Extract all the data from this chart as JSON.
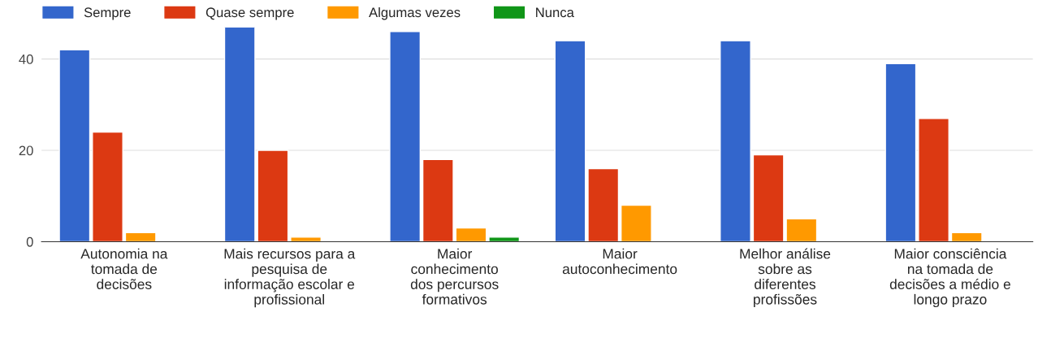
{
  "chart_data": {
    "type": "bar",
    "categories": [
      "Autonomia na\ntomada de\ndecisões",
      "Mais recursos para a\npesquisa de\ninformação escolar e\nprofissional",
      "Maior\nconhecimento\ndos percursos\nformativos",
      "Maior\nautoconhecimento",
      "Melhor análise\nsobre as\ndiferentes\nprofissões",
      "Maior consciência\nna tomada de\ndecisões a médio e\nlongo prazo"
    ],
    "series": [
      {
        "name": "Sempre",
        "color": "#3366cc",
        "values": [
          42,
          47,
          46,
          44,
          44,
          39
        ]
      },
      {
        "name": "Quase sempre",
        "color": "#dc3912",
        "values": [
          24,
          20,
          18,
          16,
          19,
          27
        ]
      },
      {
        "name": "Algumas vezes",
        "color": "#ff9900",
        "values": [
          2,
          1,
          3,
          8,
          5,
          2
        ]
      },
      {
        "name": "Nunca",
        "color": "#109618",
        "values": [
          null,
          null,
          1,
          null,
          null,
          null
        ]
      }
    ],
    "ylim": [
      0,
      47
    ],
    "yticks": [
      0,
      20,
      40
    ],
    "grid": "y",
    "legend": "top left"
  }
}
